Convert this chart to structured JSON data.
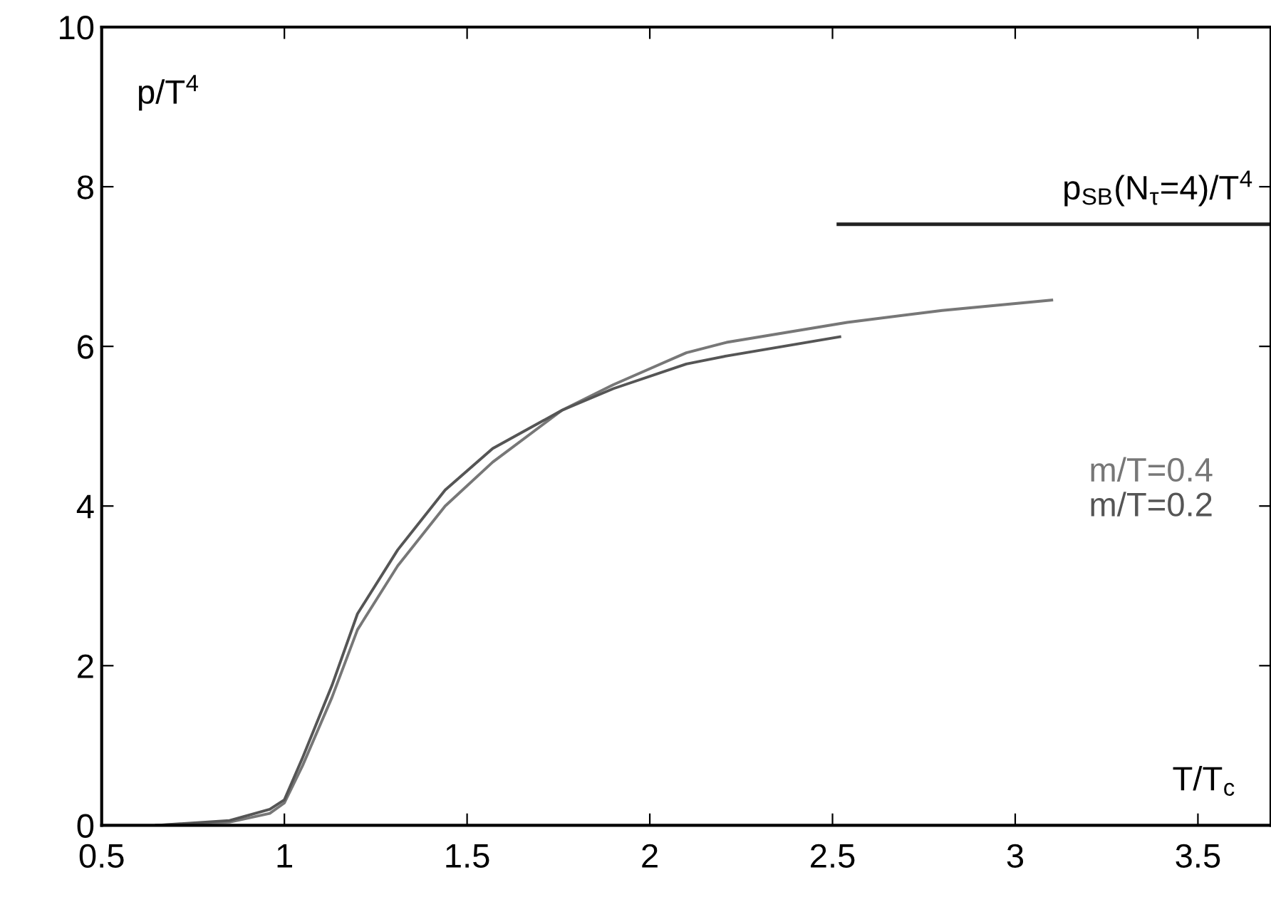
{
  "chart_data": {
    "type": "line",
    "xlabel": "T/T$_{c}$",
    "ylabel": "p/T$^{4}$",
    "xlim": [
      0.5,
      3.7
    ],
    "xticks": [
      0.5,
      1,
      1.5,
      2,
      2.5,
      3,
      3.5
    ],
    "ylim": [
      0,
      10
    ],
    "yticks": [
      0,
      2,
      4,
      6,
      8,
      10
    ],
    "grid": false,
    "legend": "right",
    "marker": "none",
    "line_style": "solid",
    "annotations": [
      "p$_{SB}$(N$_{τ}$=4)/T$^{4}$"
    ],
    "ref_lines": [
      {
        "axis": "y",
        "value": 7.53,
        "color": "#222222"
      }
    ],
    "series": [
      {
        "name": "m/T=0.4",
        "color": "#777777",
        "x": [
          0.65,
          0.85,
          0.96,
          1.0,
          1.05,
          1.13,
          1.2,
          1.31,
          1.44,
          1.57,
          1.76,
          1.9,
          2.1,
          2.21,
          2.54,
          2.8,
          3.1
        ],
        "values": [
          0,
          0.04,
          0.15,
          0.28,
          0.75,
          1.6,
          2.45,
          3.25,
          4.0,
          4.55,
          5.2,
          5.52,
          5.92,
          6.05,
          6.3,
          6.45,
          6.58
        ]
      },
      {
        "name": "m/T=0.2",
        "color": "#555555",
        "x": [
          0.65,
          0.85,
          0.96,
          1.0,
          1.05,
          1.13,
          1.2,
          1.31,
          1.44,
          1.57,
          1.76,
          1.9,
          2.1,
          2.21,
          2.52
        ],
        "values": [
          0,
          0.06,
          0.2,
          0.32,
          0.85,
          1.75,
          2.65,
          3.45,
          4.2,
          4.72,
          5.2,
          5.47,
          5.78,
          5.88,
          6.12
        ]
      }
    ]
  }
}
